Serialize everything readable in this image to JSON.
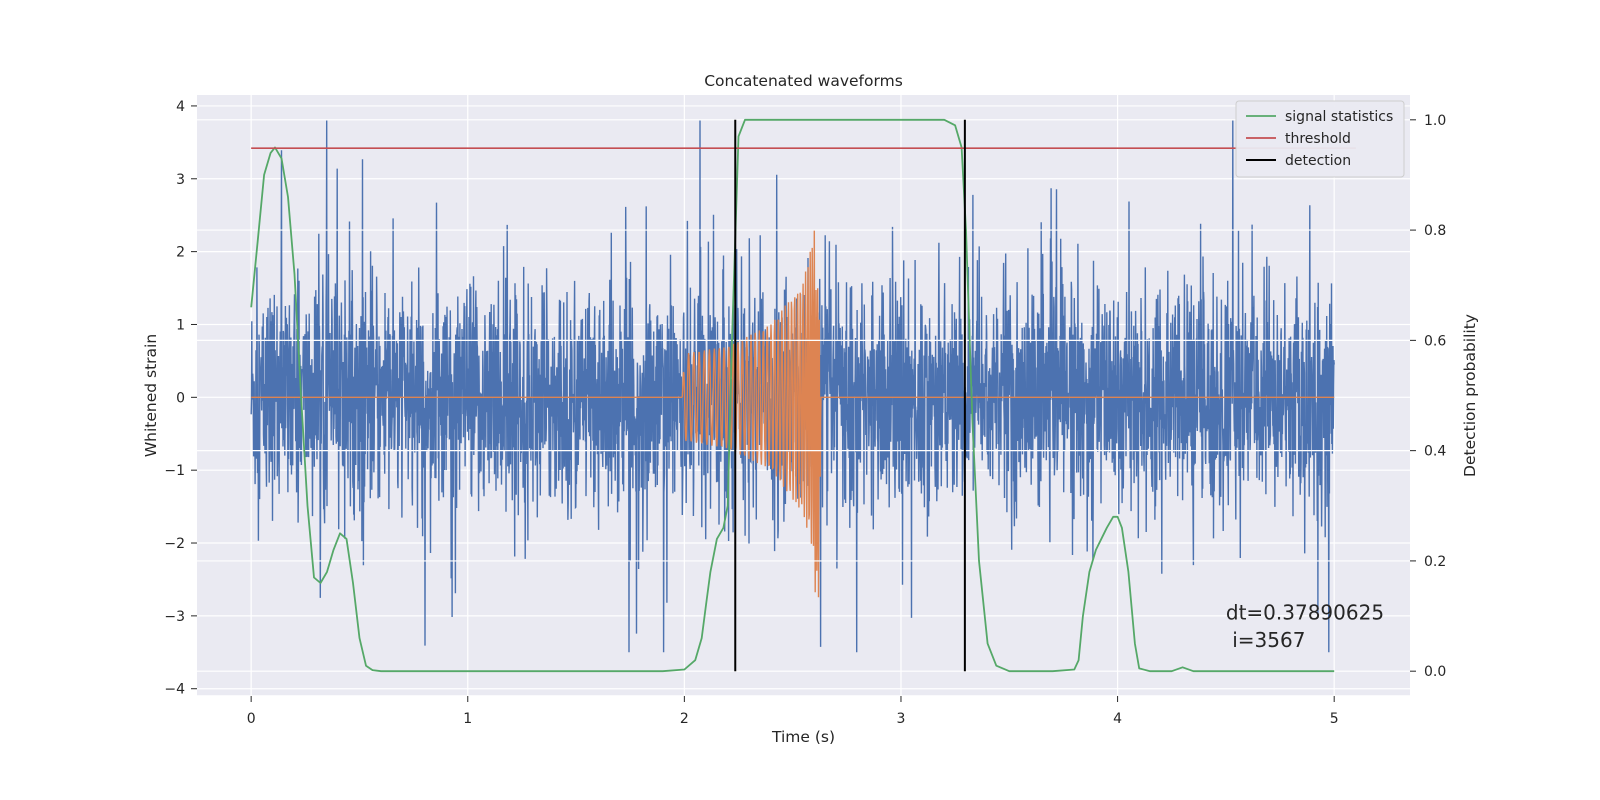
{
  "chart_data": {
    "type": "line",
    "title": "Concatenated waveforms",
    "xlabel": "Time (s)",
    "ylabel": "Whitened strain",
    "y2label": "Detection probability",
    "xlim": [
      -0.25,
      5.35
    ],
    "ylim": [
      -4.1,
      4.15
    ],
    "y2lim": [
      -0.045,
      1.045
    ],
    "x_ticks": [
      0,
      1,
      2,
      3,
      4,
      5
    ],
    "y_ticks": [
      -4,
      -3,
      -2,
      -1,
      0,
      1,
      2,
      3,
      4
    ],
    "y2_ticks": [
      0.0,
      0.2,
      0.4,
      0.6,
      0.8,
      1.0
    ],
    "y2_tick_labels": [
      "0.0",
      "0.2",
      "0.4",
      "0.6",
      "0.8",
      "1.0"
    ],
    "grid": true,
    "legend_position": "top-right",
    "series": [
      {
        "name": "",
        "axis": "left",
        "color": "#4c72b0",
        "description_values": "dense noise, approx amplitude between -3.5 and 3.8 over 0 to 5 s",
        "x_range": [
          0,
          5
        ],
        "noise_envelope": [
          [
            0,
            2.3
          ],
          [
            0.5,
            2.6
          ],
          [
            1.0,
            2.5
          ],
          [
            1.5,
            2.6
          ],
          [
            2.0,
            2.5
          ],
          [
            2.6,
            3.8
          ],
          [
            3.0,
            2.6
          ],
          [
            3.5,
            2.8
          ],
          [
            4.0,
            2.8
          ],
          [
            4.5,
            2.6
          ],
          [
            5.0,
            2.4
          ]
        ]
      },
      {
        "name": "",
        "axis": "left",
        "color": "#dd8452",
        "description_values": "injected chirp waveform",
        "x": [
          0,
          1.99,
          2.0,
          2.2,
          2.4,
          2.55,
          2.6,
          2.62,
          2.63,
          5.0
        ],
        "envelope": [
          0,
          0,
          0.6,
          0.7,
          1.0,
          1.6,
          2.3,
          2.3,
          0,
          0
        ]
      },
      {
        "name": "signal statistics",
        "axis": "right",
        "color": "#55a868",
        "x": [
          0.0,
          0.03,
          0.06,
          0.09,
          0.11,
          0.14,
          0.17,
          0.2,
          0.23,
          0.26,
          0.29,
          0.32,
          0.35,
          0.38,
          0.41,
          0.44,
          0.47,
          0.5,
          0.53,
          0.56,
          0.6,
          1.0,
          1.5,
          1.9,
          2.0,
          2.05,
          2.08,
          2.1,
          2.12,
          2.15,
          2.18,
          2.2,
          2.22,
          2.25,
          2.28,
          2.3,
          3.2,
          3.25,
          3.28,
          3.3,
          3.33,
          3.36,
          3.4,
          3.44,
          3.5,
          3.6,
          3.7,
          3.8,
          3.82,
          3.84,
          3.87,
          3.9,
          3.95,
          3.98,
          4.0,
          4.02,
          4.05,
          4.08,
          4.1,
          4.15,
          4.2,
          4.25,
          4.3,
          4.35,
          4.4,
          5.0
        ],
        "values": [
          0.66,
          0.78,
          0.9,
          0.94,
          0.95,
          0.93,
          0.86,
          0.72,
          0.5,
          0.3,
          0.17,
          0.16,
          0.18,
          0.22,
          0.25,
          0.24,
          0.16,
          0.06,
          0.01,
          0.002,
          0.0,
          0.0,
          0.0,
          0.0,
          0.003,
          0.02,
          0.06,
          0.12,
          0.18,
          0.24,
          0.26,
          0.3,
          0.6,
          0.97,
          1.0,
          1.0,
          1.0,
          0.99,
          0.95,
          0.8,
          0.45,
          0.2,
          0.05,
          0.01,
          0.0,
          0.0,
          0.0,
          0.003,
          0.02,
          0.1,
          0.18,
          0.22,
          0.26,
          0.28,
          0.28,
          0.26,
          0.18,
          0.05,
          0.005,
          0.0,
          0.0,
          0.0,
          0.007,
          0.0,
          0.0,
          0.0
        ]
      },
      {
        "name": "threshold",
        "axis": "left",
        "color": "#c44e52",
        "x": [
          0,
          5.1
        ],
        "values": [
          3.42,
          3.42
        ]
      },
      {
        "name": "detection",
        "axis": "right",
        "color": "#000000",
        "type": "vlines",
        "x": [
          2.235,
          3.295
        ],
        "y_range": [
          0.0,
          1.0
        ]
      }
    ],
    "annotations": [
      {
        "text": "dt=0.37890625",
        "x": 4.5,
        "y": -3.05
      },
      {
        "text": " i=3567",
        "x": 4.5,
        "y": -3.43
      }
    ]
  }
}
